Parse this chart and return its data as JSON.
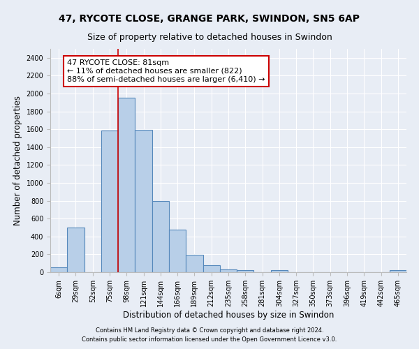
{
  "title_line1": "47, RYCOTE CLOSE, GRANGE PARK, SWINDON, SN5 6AP",
  "title_line2": "Size of property relative to detached houses in Swindon",
  "xlabel": "Distribution of detached houses by size in Swindon",
  "ylabel": "Number of detached properties",
  "footer_line1": "Contains HM Land Registry data © Crown copyright and database right 2024.",
  "footer_line2": "Contains public sector information licensed under the Open Government Licence v3.0.",
  "categories": [
    "6sqm",
    "29sqm",
    "52sqm",
    "75sqm",
    "98sqm",
    "121sqm",
    "144sqm",
    "166sqm",
    "189sqm",
    "212sqm",
    "235sqm",
    "258sqm",
    "281sqm",
    "304sqm",
    "327sqm",
    "350sqm",
    "373sqm",
    "396sqm",
    "419sqm",
    "442sqm",
    "465sqm"
  ],
  "values": [
    55,
    500,
    0,
    1585,
    1950,
    1590,
    800,
    475,
    195,
    80,
    35,
    25,
    0,
    20,
    0,
    0,
    0,
    0,
    0,
    0,
    20
  ],
  "bar_color": "#b8cfe8",
  "bar_edge_color": "#5588bb",
  "bar_edge_width": 0.8,
  "vline_color": "#cc0000",
  "vline_x_index": 3.5,
  "annotation_text": "47 RYCOTE CLOSE: 81sqm\n← 11% of detached houses are smaller (822)\n88% of semi-detached houses are larger (6,410) →",
  "annotation_box_color": "#ffffff",
  "annotation_box_edge": "#cc0000",
  "ylim": [
    0,
    2500
  ],
  "yticks": [
    0,
    200,
    400,
    600,
    800,
    1000,
    1200,
    1400,
    1600,
    1800,
    2000,
    2200,
    2400
  ],
  "bg_color": "#e8edf5",
  "plot_bg_color": "#e8edf5",
  "grid_color": "#ffffff",
  "title_fontsize": 10,
  "subtitle_fontsize": 9,
  "axis_label_fontsize": 8.5,
  "tick_fontsize": 7,
  "annotation_fontsize": 8,
  "footer_fontsize": 6
}
